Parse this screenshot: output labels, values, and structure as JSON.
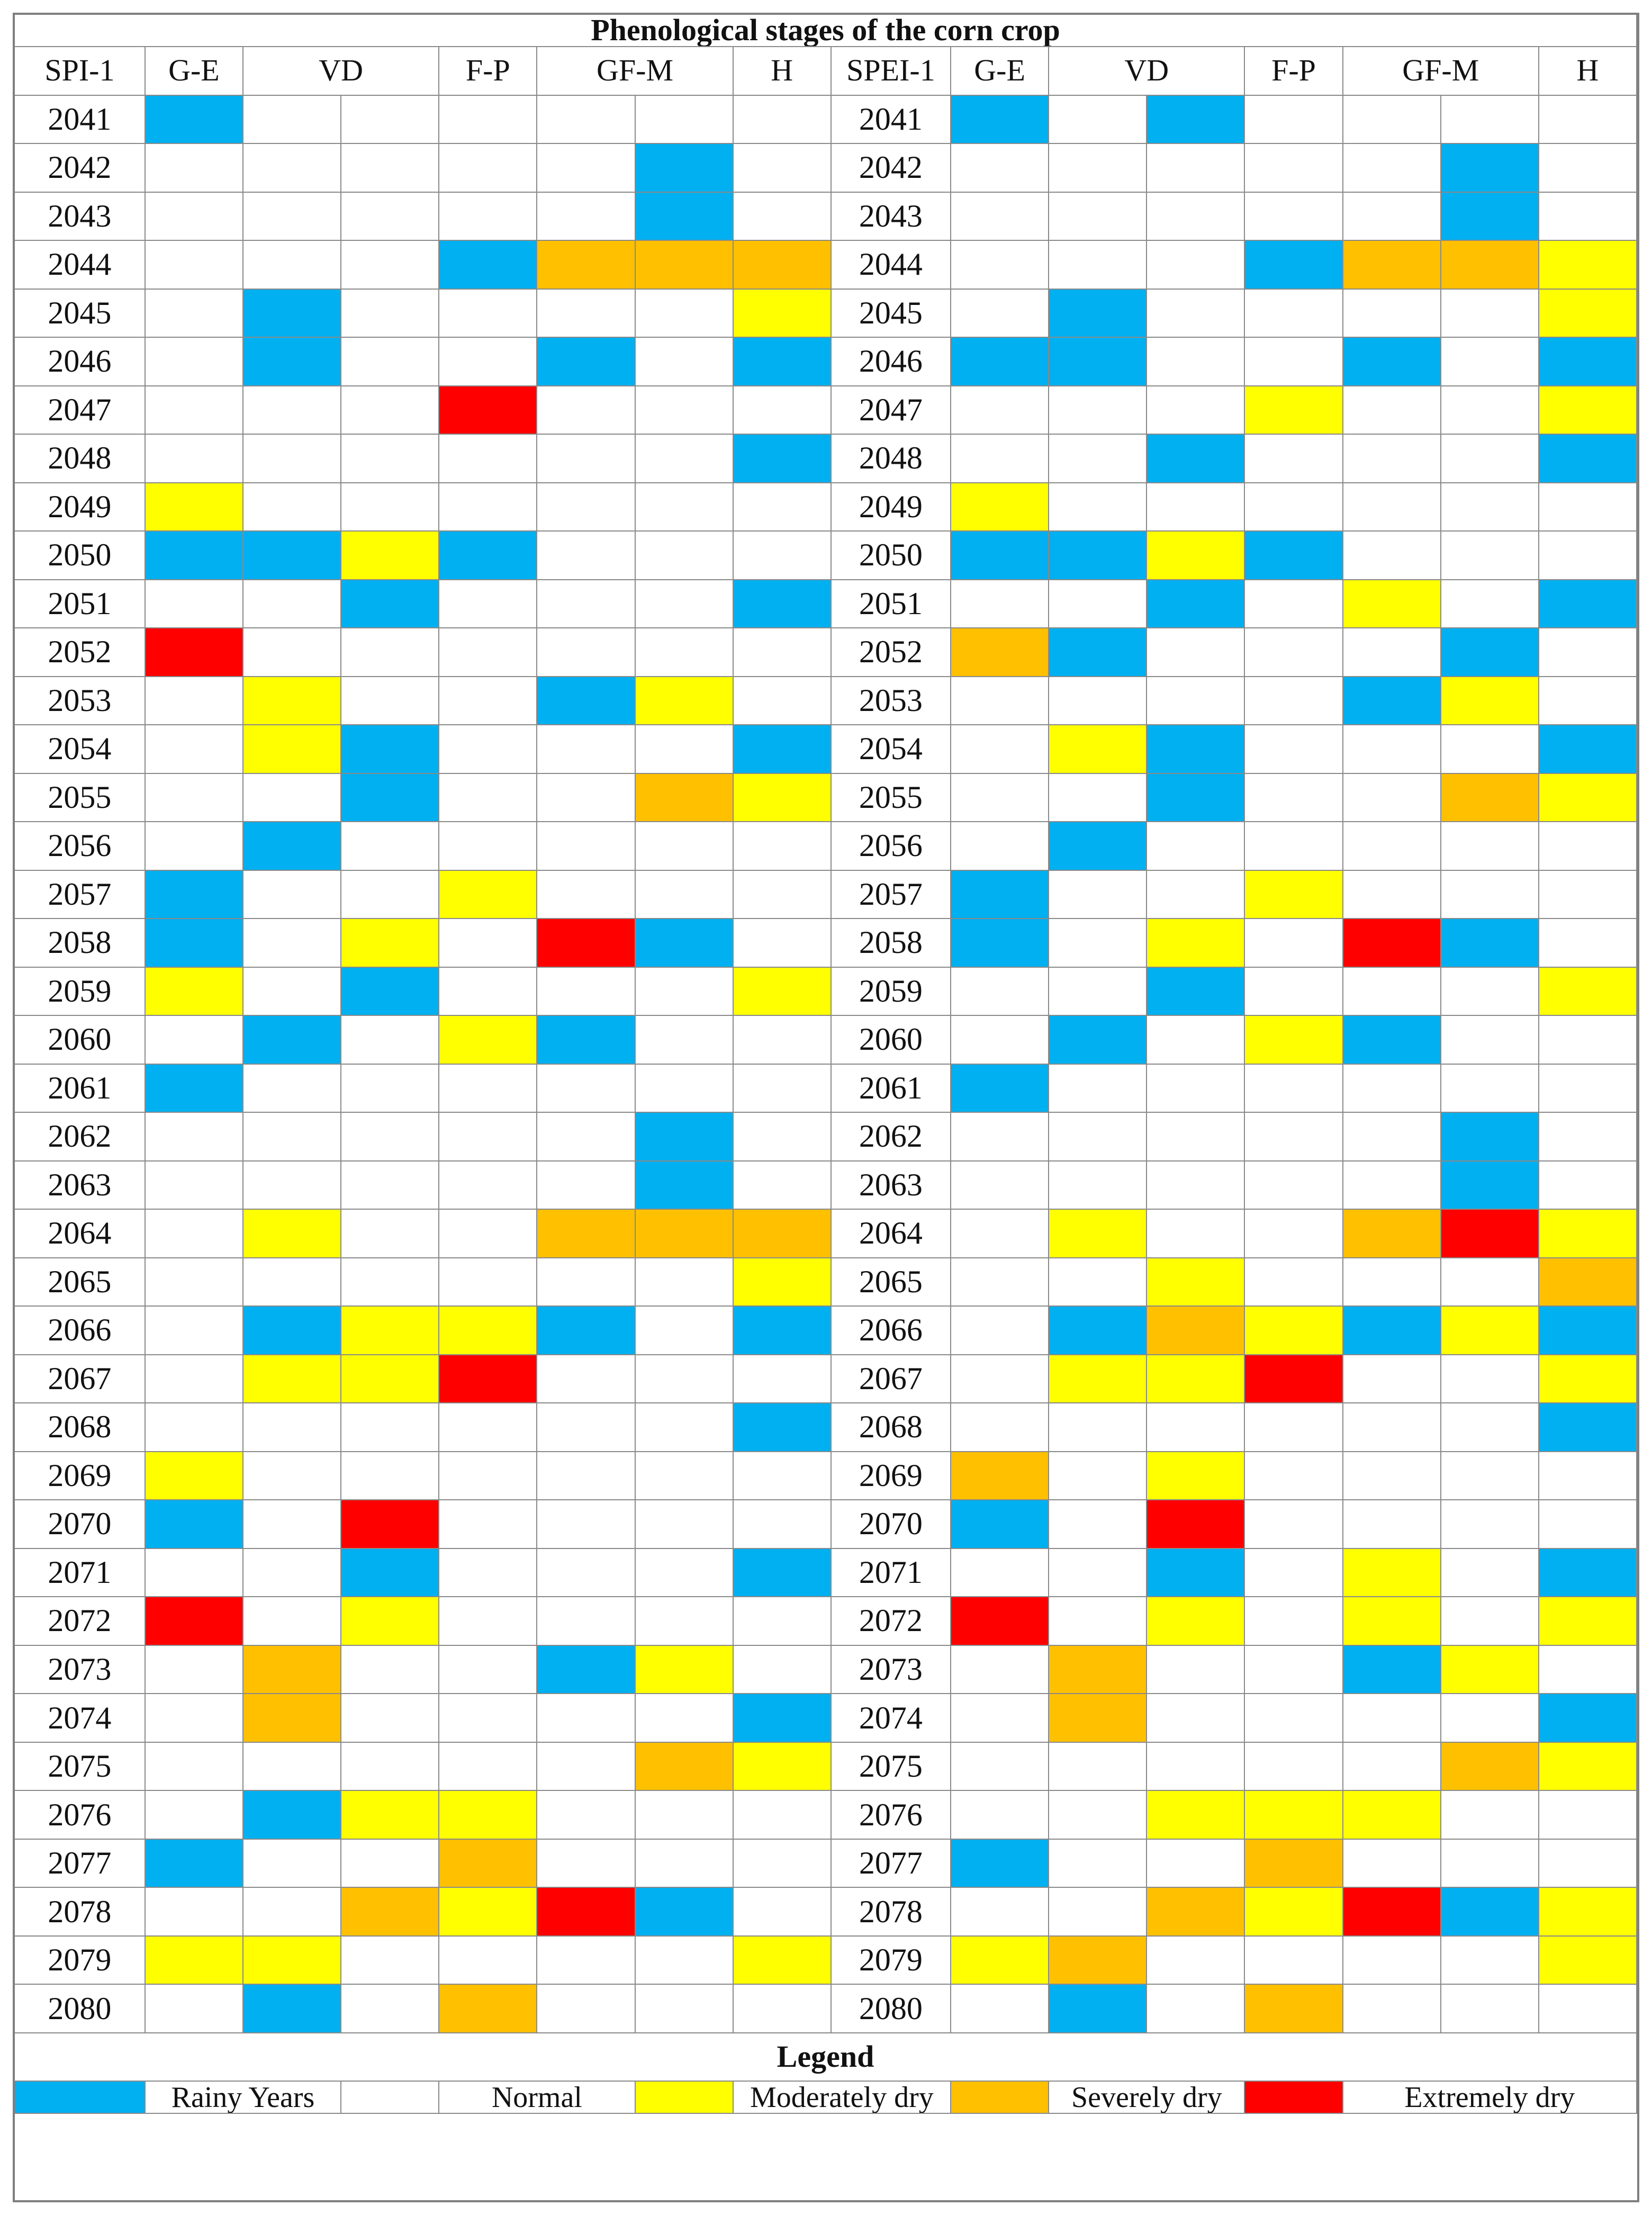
{
  "title": "Phenological stages of the corn crop",
  "left": {
    "index_label": "SPI-1"
  },
  "right": {
    "index_label": "SPEI-1"
  },
  "stage_headers": [
    {
      "label": "G-E",
      "span": 1
    },
    {
      "label": "VD",
      "span": 2
    },
    {
      "label": "F-P",
      "span": 1
    },
    {
      "label": "GF-M",
      "span": 2
    },
    {
      "label": "H",
      "span": 1
    }
  ],
  "colors": {
    "R": "#00b0f0",
    "N": "#ffffff",
    "M": "#ffff00",
    "S": "#ffc000",
    "E": "#ff0000"
  },
  "rows": [
    {
      "year": "2041",
      "spi": "R------",
      "spei": "R-R----"
    },
    {
      "year": "2042",
      "spi": "-----R-",
      "spei": "-----R-"
    },
    {
      "year": "2043",
      "spi": "-----R-",
      "spei": "-----R-"
    },
    {
      "year": "2044",
      "spi": "---RSSS",
      "spei": "---RSSM"
    },
    {
      "year": "2045",
      "spi": "-R----M",
      "spei": "-R----M"
    },
    {
      "year": "2046",
      "spi": "-R--R-R",
      "spei": "RR--R-R"
    },
    {
      "year": "2047",
      "spi": "---E---",
      "spei": "---M--M"
    },
    {
      "year": "2048",
      "spi": "------R",
      "spei": "--R---R"
    },
    {
      "year": "2049",
      "spi": "M------",
      "spei": "M------"
    },
    {
      "year": "2050",
      "spi": "RRMR---",
      "spei": "RRMR---"
    },
    {
      "year": "2051",
      "spi": "--R---R",
      "spei": "--R-M-R"
    },
    {
      "year": "2052",
      "spi": "E------",
      "spei": "SR---R-"
    },
    {
      "year": "2053",
      "spi": "-M--RM-",
      "spei": "----RM-"
    },
    {
      "year": "2054",
      "spi": "-MR---R",
      "spei": "-MR---R"
    },
    {
      "year": "2055",
      "spi": "--R--SM",
      "spei": "--R--SM"
    },
    {
      "year": "2056",
      "spi": "-R-----",
      "spei": "-R-----"
    },
    {
      "year": "2057",
      "spi": "R--M---",
      "spei": "R--M---"
    },
    {
      "year": "2058",
      "spi": "R-M-ER-",
      "spei": "R-M-ER-"
    },
    {
      "year": "2059",
      "spi": "M-R---M",
      "spei": "--R---M"
    },
    {
      "year": "2060",
      "spi": "-R-MR--",
      "spei": "-R-MR--"
    },
    {
      "year": "2061",
      "spi": "R------",
      "spei": "R------"
    },
    {
      "year": "2062",
      "spi": "-----R-",
      "spei": "-----R-"
    },
    {
      "year": "2063",
      "spi": "-----R-",
      "spei": "-----R-"
    },
    {
      "year": "2064",
      "spi": "-M--SSS",
      "spei": "-M--SEM"
    },
    {
      "year": "2065",
      "spi": "------M",
      "spei": "--M---S"
    },
    {
      "year": "2066",
      "spi": "-RMMR-R",
      "spei": "-RSMRMR"
    },
    {
      "year": "2067",
      "spi": "-MME---",
      "spei": "-MME--M"
    },
    {
      "year": "2068",
      "spi": "------R",
      "spei": "------R"
    },
    {
      "year": "2069",
      "spi": "M------",
      "spei": "S-M----"
    },
    {
      "year": "2070",
      "spi": "R-E----",
      "spei": "R-E----"
    },
    {
      "year": "2071",
      "spi": "--R---R",
      "spei": "--R-M-R"
    },
    {
      "year": "2072",
      "spi": "E-M----",
      "spei": "E-M-M-M"
    },
    {
      "year": "2073",
      "spi": "-S--RM-",
      "spei": "-S--RM-"
    },
    {
      "year": "2074",
      "spi": "-S----R",
      "spei": "-S----R"
    },
    {
      "year": "2075",
      "spi": "-----SM",
      "spei": "-----SM"
    },
    {
      "year": "2076",
      "spi": "-RMM---",
      "spei": "--MMM--"
    },
    {
      "year": "2077",
      "spi": "R--S---",
      "spei": "R--S---"
    },
    {
      "year": "2078",
      "spi": "--SMER-",
      "spei": "--SMERM"
    },
    {
      "year": "2079",
      "spi": "MM----M",
      "spei": "MS----M"
    },
    {
      "year": "2080",
      "spi": "-R-S---",
      "spei": "-R-S---"
    }
  ],
  "legend": {
    "title": "Legend",
    "items": [
      {
        "code": "R",
        "label": "Rainy Years"
      },
      {
        "code": "N",
        "label": "Normal"
      },
      {
        "code": "M",
        "label": "Moderately dry"
      },
      {
        "code": "S",
        "label": "Severely dry"
      },
      {
        "code": "E",
        "label": "Extremely dry"
      }
    ]
  }
}
